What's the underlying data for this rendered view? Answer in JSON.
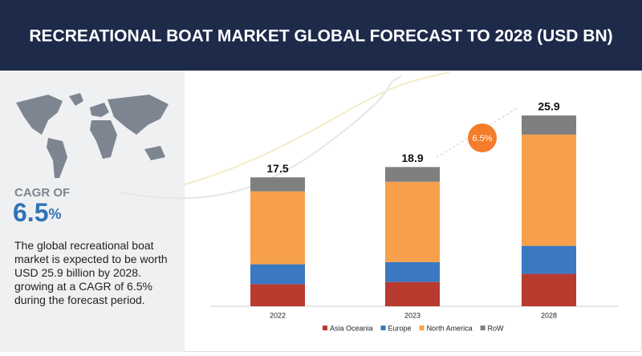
{
  "title": "RECREATIONAL BOAT MARKET GLOBAL FORECAST TO 2028 (USD BN)",
  "cagr": {
    "label": "CAGR OF",
    "value": "6.5",
    "unit": "%"
  },
  "description": "The global recreational boat market is expected to be worth USD 25.9 billion by 2028. growing at a CAGR of 6.5% during the forecast period.",
  "chart_data": {
    "type": "stacked_bar",
    "categories": [
      "2022",
      "2023",
      "2028"
    ],
    "series": [
      {
        "name": "Asia Oceania",
        "color": "#b83b30",
        "values": [
          3.0,
          3.3,
          4.4
        ]
      },
      {
        "name": "Europe",
        "color": "#3a78c2",
        "values": [
          2.7,
          2.7,
          3.8
        ]
      },
      {
        "name": "North America",
        "color": "#f7a04c",
        "values": [
          9.9,
          10.9,
          15.1
        ]
      },
      {
        "name": "RoW",
        "color": "#7f7f7f",
        "values": [
          1.9,
          2.0,
          2.6
        ]
      }
    ],
    "totals": [
      17.5,
      18.9,
      25.9
    ],
    "annotation": "6.5%"
  }
}
